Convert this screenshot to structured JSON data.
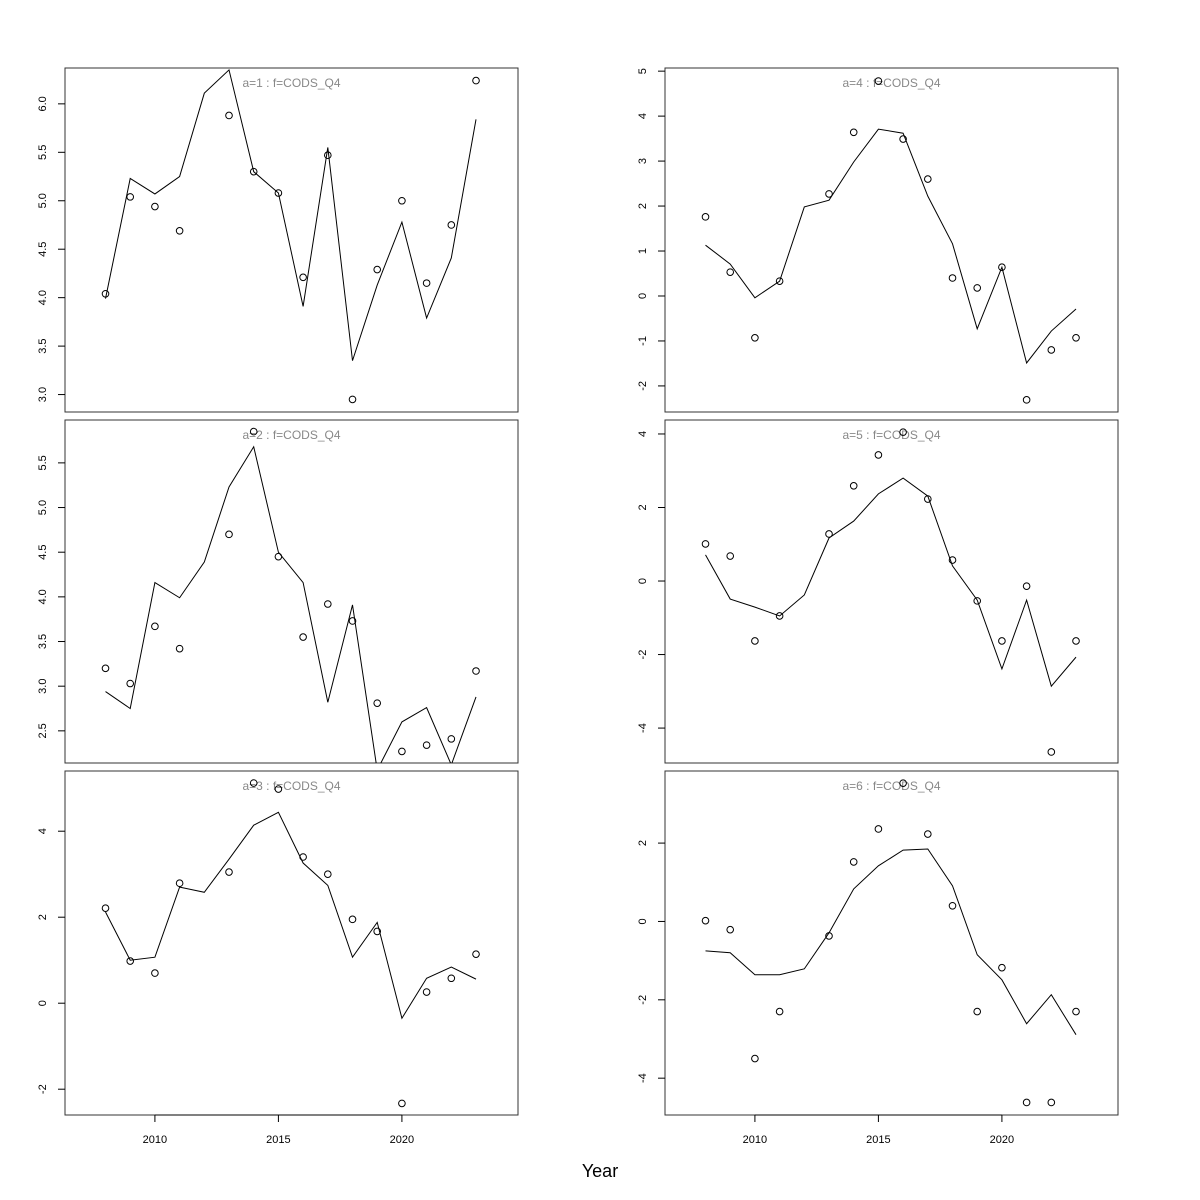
{
  "xlabel": "Year",
  "chart_data": [
    {
      "type": "line",
      "title": "a=1  :  f=CODS_Q4",
      "x": [
        2008,
        2009,
        2010,
        2011,
        2012,
        2013,
        2014,
        2015,
        2016,
        2017,
        2018,
        2019,
        2020,
        2021,
        2022,
        2023
      ],
      "xlim": [
        2006.36,
        2024.7
      ],
      "ylim": [
        2.82,
        6.37
      ],
      "yticks": [
        {
          "value": 3,
          "label": "3.0"
        },
        {
          "value": 3.5,
          "label": "3.5"
        },
        {
          "value": 4,
          "label": "4.0"
        },
        {
          "value": 4.5,
          "label": "4.5"
        },
        {
          "value": 5,
          "label": "5.0"
        },
        {
          "value": 5.5,
          "label": "5.5"
        },
        {
          "value": 6,
          "label": "6.0"
        }
      ],
      "series": [
        {
          "draw": "points",
          "color": "#000000",
          "values": [
            4.04,
            5.04,
            4.94,
            4.69,
            null,
            5.88,
            5.3,
            5.08,
            4.21,
            5.47,
            2.95,
            4.29,
            5.0,
            4.15,
            4.75,
            6.24
          ]
        },
        {
          "draw": "line",
          "color": "#000000",
          "values": [
            3.99,
            5.23,
            5.07,
            5.25,
            6.11,
            6.35,
            5.3,
            5.08,
            3.91,
            5.55,
            3.35,
            4.13,
            4.78,
            3.79,
            4.41,
            5.84
          ]
        }
      ]
    },
    {
      "type": "line",
      "title": "a=2  :  f=CODS_Q4",
      "x": [
        2008,
        2009,
        2010,
        2011,
        2012,
        2013,
        2014,
        2015,
        2016,
        2017,
        2018,
        2019,
        2020,
        2021,
        2022,
        2023
      ],
      "xlim": [
        2006.36,
        2024.7
      ],
      "ylim": [
        2.14,
        5.98
      ],
      "yticks": [
        {
          "value": 2.5,
          "label": "2.5"
        },
        {
          "value": 3,
          "label": "3.0"
        },
        {
          "value": 3.5,
          "label": "3.5"
        },
        {
          "value": 4,
          "label": "4.0"
        },
        {
          "value": 4.5,
          "label": "4.5"
        },
        {
          "value": 5,
          "label": "5.0"
        },
        {
          "value": 5.5,
          "label": "5.5"
        }
      ],
      "series": [
        {
          "draw": "points",
          "color": "#000000",
          "values": [
            3.2,
            3.03,
            3.67,
            3.42,
            null,
            4.7,
            5.85,
            4.45,
            3.55,
            3.92,
            3.73,
            2.81,
            2.27,
            2.34,
            2.41,
            3.17
          ]
        },
        {
          "draw": "line",
          "color": "#000000",
          "values": [
            2.94,
            2.75,
            4.16,
            3.99,
            4.39,
            5.23,
            5.68,
            4.5,
            4.16,
            2.82,
            3.91,
            2.06,
            2.6,
            2.76,
            2.12,
            2.88
          ]
        }
      ]
    },
    {
      "type": "line",
      "title": "a=3  :  f=CODS_Q4",
      "x": [
        2008,
        2009,
        2010,
        2011,
        2012,
        2013,
        2014,
        2015,
        2016,
        2017,
        2018,
        2019,
        2020,
        2021,
        2022,
        2023
      ],
      "xlim": [
        2006.36,
        2024.7
      ],
      "ylim": [
        -2.6,
        5.4
      ],
      "xticks": [
        2010,
        2015,
        2020
      ],
      "yticks": [
        -2,
        0,
        2,
        4
      ],
      "series": [
        {
          "draw": "points",
          "color": "#000000",
          "values": [
            2.21,
            0.98,
            0.7,
            2.79,
            null,
            3.05,
            5.12,
            4.98,
            3.4,
            3.0,
            1.95,
            1.67,
            -2.33,
            0.26,
            0.58,
            1.14
          ]
        },
        {
          "draw": "line",
          "color": "#000000",
          "values": [
            2.12,
            1.0,
            1.07,
            2.7,
            2.58,
            3.35,
            4.14,
            4.44,
            3.26,
            2.74,
            1.07,
            1.88,
            -0.35,
            0.58,
            0.84,
            0.56
          ]
        }
      ]
    },
    {
      "type": "line",
      "title": "a=4  :  f=CODS_Q4",
      "x": [
        2008,
        2009,
        2010,
        2011,
        2012,
        2013,
        2014,
        2015,
        2016,
        2017,
        2018,
        2019,
        2020,
        2021,
        2022,
        2023
      ],
      "xlim": [
        2006.36,
        2024.7
      ],
      "ylim": [
        -2.58,
        5.07
      ],
      "yticks": [
        -2,
        -1,
        0,
        1,
        2,
        3,
        4,
        5
      ],
      "series": [
        {
          "draw": "points",
          "color": "#000000",
          "values": [
            1.76,
            0.53,
            -0.93,
            0.33,
            null,
            2.27,
            3.64,
            4.78,
            3.49,
            2.6,
            0.4,
            0.18,
            0.64,
            -2.31,
            -1.2,
            -0.93
          ]
        },
        {
          "draw": "line",
          "color": "#000000",
          "values": [
            1.13,
            0.71,
            -0.04,
            0.33,
            1.98,
            2.13,
            2.98,
            3.71,
            3.62,
            2.22,
            1.16,
            -0.73,
            0.64,
            -1.49,
            -0.78,
            -0.29
          ]
        }
      ]
    },
    {
      "type": "line",
      "title": "a=5  :  f=CODS_Q4",
      "x": [
        2008,
        2009,
        2010,
        2011,
        2012,
        2013,
        2014,
        2015,
        2016,
        2017,
        2018,
        2019,
        2020,
        2021,
        2022,
        2023
      ],
      "xlim": [
        2006.36,
        2024.7
      ],
      "ylim": [
        -4.95,
        4.38
      ],
      "yticks": [
        -4,
        -2,
        0,
        2,
        4
      ],
      "series": [
        {
          "draw": "points",
          "color": "#000000",
          "values": [
            1.01,
            0.68,
            -1.63,
            -0.95,
            null,
            1.28,
            2.59,
            3.43,
            4.05,
            2.23,
            0.57,
            -0.54,
            -1.63,
            -0.14,
            -4.65,
            -1.63
          ]
        },
        {
          "draw": "line",
          "color": "#000000",
          "values": [
            0.71,
            -0.49,
            -0.71,
            -0.95,
            -0.38,
            1.17,
            1.63,
            2.37,
            2.8,
            2.31,
            0.41,
            -0.52,
            -2.39,
            -0.52,
            -2.86,
            -2.07
          ]
        }
      ]
    },
    {
      "type": "line",
      "title": "a=6  :  f=CODS_Q4",
      "x": [
        2008,
        2009,
        2010,
        2011,
        2012,
        2013,
        2014,
        2015,
        2016,
        2017,
        2018,
        2019,
        2020,
        2021,
        2022,
        2023
      ],
      "xlim": [
        2006.36,
        2024.7
      ],
      "ylim": [
        -4.94,
        3.84
      ],
      "xticks": [
        2010,
        2015,
        2020
      ],
      "yticks": [
        -4,
        -2,
        0,
        2
      ],
      "series": [
        {
          "draw": "points",
          "color": "#000000",
          "values": [
            0.02,
            -0.21,
            -3.5,
            -2.3,
            null,
            -0.37,
            1.52,
            2.36,
            3.53,
            2.23,
            0.4,
            -2.3,
            -1.18,
            -4.62,
            -4.62,
            -2.3
          ]
        },
        {
          "draw": "line",
          "color": "#000000",
          "values": [
            -0.75,
            -0.8,
            -1.36,
            -1.36,
            -1.21,
            -0.29,
            0.83,
            1.42,
            1.82,
            1.85,
            0.91,
            -0.85,
            -1.49,
            -2.61,
            -1.87,
            -2.89
          ]
        }
      ]
    }
  ]
}
